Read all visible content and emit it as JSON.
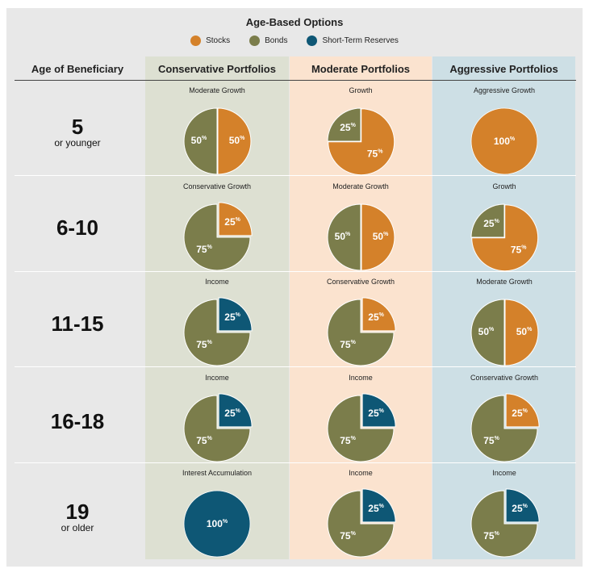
{
  "title": "Age-Based Options",
  "legend": {
    "stocks": "Stocks",
    "bonds": "Bonds",
    "reserves": "Short-Term Reserves"
  },
  "colors": {
    "stocks": "#d4812a",
    "bonds": "#7b7d4b",
    "reserves": "#0e5775",
    "conservative_bg": "#dde0d2",
    "moderate_bg": "#fbe3cf",
    "aggressive_bg": "#cddfe5",
    "frame_bg": "#e8e8e8"
  },
  "headers": {
    "age": "Age of Beneficiary",
    "columns": [
      "Conservative Portfolios",
      "Moderate Portfolios",
      "Aggressive Portfolios"
    ]
  },
  "ages": [
    {
      "big": "5",
      "small": "or younger"
    },
    {
      "big": "6-10",
      "small": ""
    },
    {
      "big": "11-15",
      "small": ""
    },
    {
      "big": "16-18",
      "small": ""
    },
    {
      "big": "19",
      "small": "or older"
    }
  ],
  "chart_data": {
    "type": "pie",
    "title": "Age-Based Options",
    "series_names": [
      "Stocks",
      "Bonds",
      "Short-Term Reserves"
    ],
    "percent_suffix": "%",
    "grid": [
      [
        {
          "name": "Moderate Growth",
          "stocks": 50,
          "bonds": 50,
          "reserves": 0
        },
        {
          "name": "Growth",
          "stocks": 75,
          "bonds": 25,
          "reserves": 0
        },
        {
          "name": "Aggressive Growth",
          "stocks": 100,
          "bonds": 0,
          "reserves": 0
        }
      ],
      [
        {
          "name": "Conservative Growth",
          "stocks": 25,
          "bonds": 75,
          "reserves": 0
        },
        {
          "name": "Moderate Growth",
          "stocks": 50,
          "bonds": 50,
          "reserves": 0
        },
        {
          "name": "Growth",
          "stocks": 75,
          "bonds": 25,
          "reserves": 0
        }
      ],
      [
        {
          "name": "Income",
          "stocks": 0,
          "bonds": 75,
          "reserves": 25
        },
        {
          "name": "Conservative Growth",
          "stocks": 25,
          "bonds": 75,
          "reserves": 0
        },
        {
          "name": "Moderate Growth",
          "stocks": 50,
          "bonds": 50,
          "reserves": 0
        }
      ],
      [
        {
          "name": "Income",
          "stocks": 0,
          "bonds": 75,
          "reserves": 25
        },
        {
          "name": "Income",
          "stocks": 0,
          "bonds": 75,
          "reserves": 25
        },
        {
          "name": "Conservative Growth",
          "stocks": 25,
          "bonds": 75,
          "reserves": 0
        }
      ],
      [
        {
          "name": "Interest Accumulation",
          "stocks": 0,
          "bonds": 0,
          "reserves": 100
        },
        {
          "name": "Income",
          "stocks": 0,
          "bonds": 75,
          "reserves": 25
        },
        {
          "name": "Income",
          "stocks": 0,
          "bonds": 75,
          "reserves": 25
        }
      ]
    ]
  }
}
